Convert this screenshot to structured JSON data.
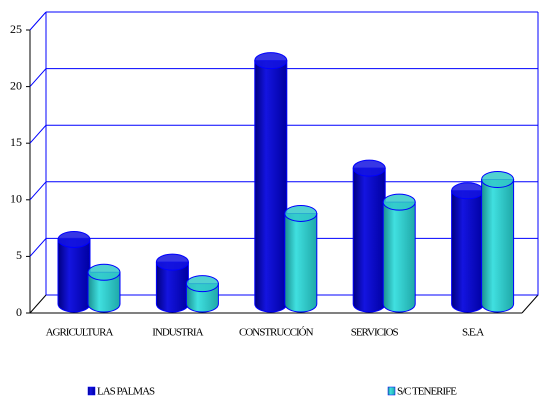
{
  "chart_data": {
    "type": "bar3d",
    "categories": [
      "AGRICULTURA",
      "INDUSTRIA",
      "CONSTRUCCIÓN",
      "SERVICIOS",
      "S.E.A"
    ],
    "series": [
      {
        "name": "LAS PALMAS",
        "color": "#1414e0",
        "values": [
          5.7,
          3.7,
          21.5,
          12,
          10
        ]
      },
      {
        "name": "S/C TENERIFE",
        "color": "#33c9c9",
        "values": [
          2.8,
          1.8,
          8,
          9,
          11
        ]
      }
    ],
    "ylim": [
      0,
      25
    ],
    "yticks": [
      0,
      5,
      10,
      15,
      20,
      25
    ],
    "grid": true
  }
}
